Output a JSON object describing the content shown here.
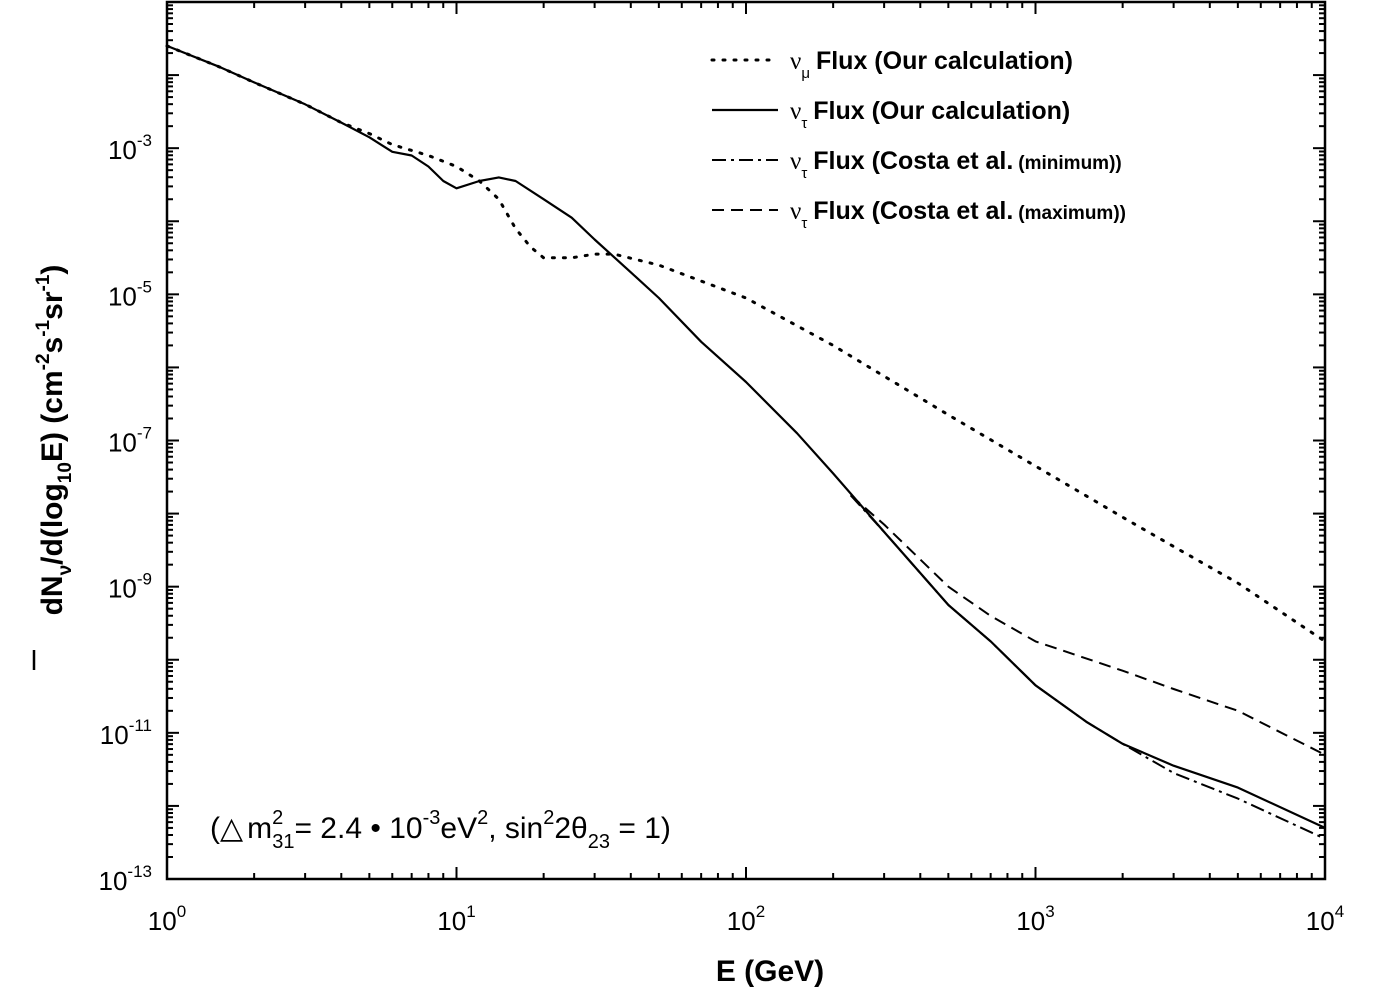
{
  "chart_data": {
    "type": "line",
    "x_scale": "log",
    "y_scale": "log",
    "xlabel": "E (GeV)",
    "ylabel": {
      "prefix": "dN",
      "sub_nu": "ν",
      "mid": "/d(log",
      "sub_10": "10",
      "mid2": "E)  (cm",
      "exp_cm": "-2",
      "s": "s",
      "exp_s": "-1",
      "sr": "sr",
      "exp_sr": "-1",
      "suffix": ")"
    },
    "xlim": [
      1,
      10000
    ],
    "ylim": [
      1e-13,
      0.1
    ],
    "x_ticks": [
      {
        "value": 1,
        "base": "10",
        "exp": "0"
      },
      {
        "value": 10,
        "base": "10",
        "exp": "1"
      },
      {
        "value": 100,
        "base": "10",
        "exp": "2"
      },
      {
        "value": 1000,
        "base": "10",
        "exp": "3"
      },
      {
        "value": 10000,
        "base": "10",
        "exp": "4"
      }
    ],
    "y_ticks": [
      {
        "value": 0.001,
        "base": "10",
        "exp": "-3"
      },
      {
        "value": 1e-05,
        "base": "10",
        "exp": "-5"
      },
      {
        "value": 1e-07,
        "base": "10",
        "exp": "-7"
      },
      {
        "value": 1e-09,
        "base": "10",
        "exp": "-9"
      },
      {
        "value": 1e-11,
        "base": "10",
        "exp": "-11"
      },
      {
        "value": 1e-13,
        "base": "10",
        "exp": "-13"
      }
    ],
    "legend_position": "top-right",
    "series": [
      {
        "legend_nu": "ν",
        "legend_sub": "μ",
        "name": "Flux (Our calculation)",
        "name_extra": "",
        "style": "dotted",
        "points": [
          [
            1,
            0.0251
          ],
          [
            1.5,
            0.0132
          ],
          [
            2,
            0.00794
          ],
          [
            3,
            0.00398
          ],
          [
            4,
            0.00224
          ],
          [
            5,
            0.00158
          ],
          [
            6,
            0.00112
          ],
          [
            8,
            0.000794
          ],
          [
            10,
            0.000562
          ],
          [
            12,
            0.000355
          ],
          [
            14,
            0.0002
          ],
          [
            16,
            7.94e-05
          ],
          [
            18,
            4.47e-05
          ],
          [
            20,
            3.16e-05
          ],
          [
            25,
            3.16e-05
          ],
          [
            30,
            3.55e-05
          ],
          [
            35,
            3.55e-05
          ],
          [
            50,
            2.51e-05
          ],
          [
            100,
            8.91e-06
          ],
          [
            200,
            2e-06
          ],
          [
            300,
            7.59e-07
          ],
          [
            500,
            2.24e-07
          ],
          [
            1000,
            4.47e-08
          ],
          [
            2000,
            8.91e-09
          ],
          [
            3000,
            3.55e-09
          ],
          [
            5000,
            1.12e-09
          ],
          [
            10000,
            1.78e-10
          ]
        ]
      },
      {
        "legend_nu": "ν",
        "legend_sub": "τ",
        "name": "Flux (Our calculation)",
        "name_extra": "",
        "style": "solid",
        "points": [
          [
            1,
            0.0251
          ],
          [
            1.5,
            0.0132
          ],
          [
            2,
            0.00794
          ],
          [
            3,
            0.00398
          ],
          [
            4,
            0.00224
          ],
          [
            5,
            0.00141
          ],
          [
            6,
            0.000891
          ],
          [
            7,
            0.000794
          ],
          [
            8,
            0.000562
          ],
          [
            9,
            0.000355
          ],
          [
            10,
            0.000282
          ],
          [
            12,
            0.000355
          ],
          [
            14,
            0.000398
          ],
          [
            16,
            0.000355
          ],
          [
            20,
            0.0002
          ],
          [
            25,
            0.000112
          ],
          [
            30,
            5.62e-05
          ],
          [
            40,
            2e-05
          ],
          [
            50,
            8.91e-06
          ],
          [
            70,
            2.24e-06
          ],
          [
            100,
            6.31e-07
          ],
          [
            150,
            1.26e-07
          ],
          [
            200,
            3.55e-08
          ],
          [
            300,
            5.62e-09
          ],
          [
            500,
            5.62e-10
          ],
          [
            700,
            1.78e-10
          ],
          [
            1000,
            4.47e-11
          ],
          [
            1500,
            1.41e-11
          ],
          [
            2000,
            7.08e-12
          ],
          [
            3000,
            3.55e-12
          ],
          [
            5000,
            1.78e-12
          ],
          [
            10000,
            5.01e-13
          ]
        ]
      },
      {
        "legend_nu": "ν",
        "legend_sub": "τ",
        "name": "Flux (Costa et al.",
        "name_extra": "(minimum))",
        "style": "dashdot",
        "points": [
          [
            230,
            1.78e-08
          ],
          [
            300,
            5.62e-09
          ],
          [
            500,
            5.62e-10
          ],
          [
            700,
            1.78e-10
          ],
          [
            1000,
            4.47e-11
          ],
          [
            1500,
            1.41e-11
          ],
          [
            2000,
            7.08e-12
          ],
          [
            3000,
            2.82e-12
          ],
          [
            5000,
            1.26e-12
          ],
          [
            10000,
            3.55e-13
          ]
        ]
      },
      {
        "legend_nu": "ν",
        "legend_sub": "τ",
        "name": "Flux (Costa et al.",
        "name_extra": "(maximum))",
        "style": "dashed",
        "points": [
          [
            230,
            1.78e-08
          ],
          [
            300,
            7.08e-09
          ],
          [
            500,
            1e-09
          ],
          [
            700,
            3.98e-10
          ],
          [
            1000,
            1.78e-10
          ],
          [
            2000,
            7.08e-11
          ],
          [
            3000,
            3.98e-11
          ],
          [
            5000,
            2e-11
          ],
          [
            10000,
            5.01e-12
          ]
        ]
      }
    ],
    "annotation": {
      "open": "(",
      "delta": "△",
      "m": "m",
      "exp2a": "2",
      "sub31": "31",
      "eq1": "= 2.4 ",
      "dot": "•",
      "ten": " 10",
      "exp_m3": "-3",
      "ev": "eV",
      "exp2b": "2",
      "comma": ", sin",
      "exp2c": "2",
      "two_theta": "2θ",
      "sub23": "23",
      "eq2": " = 1)"
    }
  }
}
